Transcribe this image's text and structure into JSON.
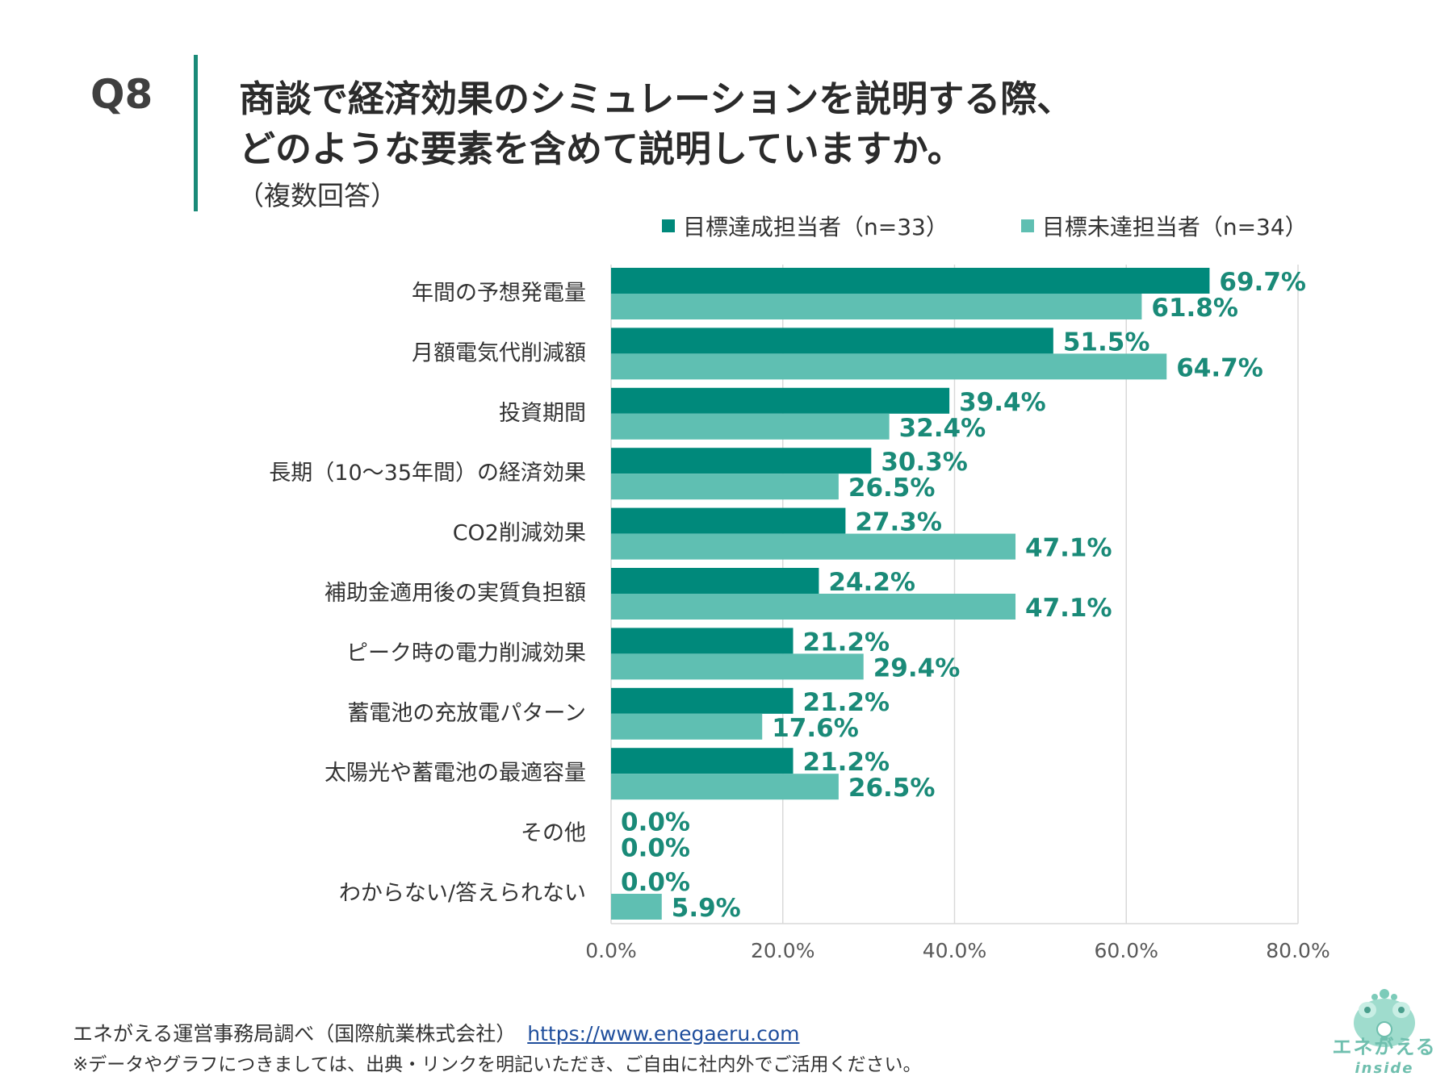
{
  "header": {
    "question_label": "Q8",
    "title_line1": "商談で経済効果のシミュレーションを説明する際、",
    "title_line2": "どのような要素を含めて説明していますか。",
    "subtitle": "（複数回答）"
  },
  "colors": {
    "achieved": "#00897b",
    "not_achieved": "#5fbfb2",
    "accent_bar": "#1a8a78",
    "value_label": "#1a8a78",
    "grid": "#d9d9d9",
    "axis_tick": "#595959"
  },
  "chart_data": {
    "type": "bar",
    "orientation": "horizontal",
    "title": "商談で経済効果のシミュレーションを説明する際、どのような要素を含めて説明していますか。",
    "categories": [
      "年間の予想発電量",
      "月額電気代削減額",
      "投資期間",
      "長期（10〜35年間）の経済効果",
      "CO2削減効果",
      "補助金適用後の実質負担額",
      "ピーク時の電力削減効果",
      "蓄電池の充放電パターン",
      "太陽光や蓄電池の最適容量",
      "その他",
      "わからない/答えられない"
    ],
    "series": [
      {
        "name": "目標達成担当者（n=33）",
        "values": [
          69.7,
          51.5,
          39.4,
          30.3,
          27.3,
          24.2,
          21.2,
          21.2,
          21.2,
          0.0,
          0.0
        ],
        "labels": [
          "69.7%",
          "51.5%",
          "39.4%",
          "30.3%",
          "27.3%",
          "24.2%",
          "21.2%",
          "21.2%",
          "21.2%",
          "0.0%",
          "0.0%"
        ]
      },
      {
        "name": "目標未達担当者（n=34）",
        "values": [
          61.8,
          64.7,
          32.4,
          26.5,
          47.1,
          47.1,
          29.4,
          17.6,
          26.5,
          0.0,
          5.9
        ],
        "labels": [
          "61.8%",
          "64.7%",
          "32.4%",
          "26.5%",
          "47.1%",
          "47.1%",
          "29.4%",
          "17.6%",
          "26.5%",
          "0.0%",
          "5.9%"
        ]
      }
    ],
    "xlim": [
      0,
      80
    ],
    "xticks": [
      0,
      20,
      40,
      60,
      80
    ],
    "xtick_labels": [
      "0.0%",
      "20.0%",
      "40.0%",
      "60.0%",
      "80.0%"
    ],
    "xlabel": "",
    "ylabel": "",
    "grid": true,
    "legend": "top-right"
  },
  "footer": {
    "source": "エネがえる運営事務局調べ（国際航業株式会社）",
    "url": "https://www.enegaeru.com",
    "note": "※データやグラフにつきましては、出典・リンクを明記いただき、ご自由に社内外でご活用ください。"
  },
  "logo": {
    "name": "エネがえる",
    "sub": "inside"
  }
}
